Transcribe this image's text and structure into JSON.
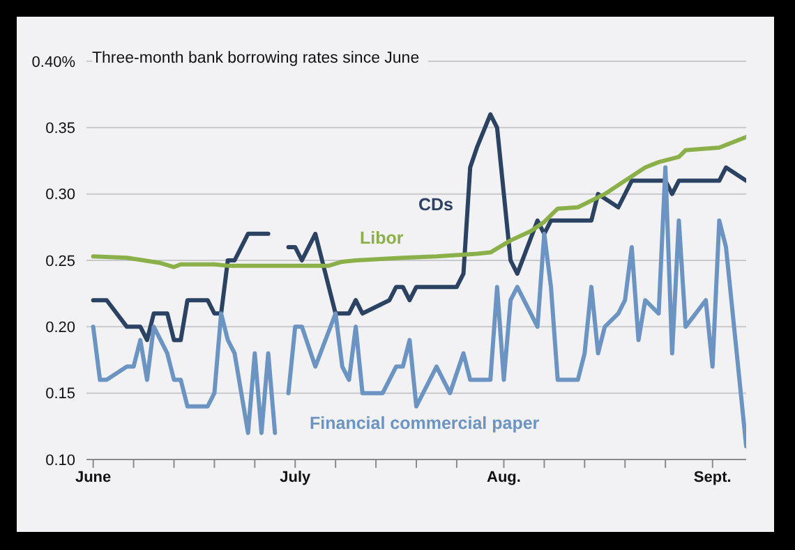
{
  "chart_data": {
    "type": "line",
    "title": "Three-month bank borrowing rates since June",
    "xlim": [
      "--05-31",
      "--09-06"
    ],
    "xticks": [
      {
        "value": "--06-01",
        "label": "June"
      },
      {
        "value": "--06-07",
        "label": null
      },
      {
        "value": "--06-13",
        "label": null
      },
      {
        "value": "--06-19",
        "label": null
      },
      {
        "value": "--06-25",
        "label": null
      },
      {
        "value": "--07-01",
        "label": "July"
      },
      {
        "value": "--07-07",
        "label": null
      },
      {
        "value": "--07-13",
        "label": null
      },
      {
        "value": "--07-19",
        "label": null
      },
      {
        "value": "--07-25",
        "label": null
      },
      {
        "value": "--08-01",
        "label": "Aug."
      },
      {
        "value": "--08-07",
        "label": null
      },
      {
        "value": "--08-13",
        "label": null
      },
      {
        "value": "--08-19",
        "label": null
      },
      {
        "value": "--08-25",
        "label": null
      },
      {
        "value": "--09-01",
        "label": "Sept."
      }
    ],
    "ylim": [
      0.1,
      0.4
    ],
    "yticks": [
      {
        "value": 0.1,
        "label": "0.10"
      },
      {
        "value": 0.15,
        "label": "0.15"
      },
      {
        "value": 0.2,
        "label": "0.20"
      },
      {
        "value": 0.25,
        "label": "0.25"
      },
      {
        "value": 0.3,
        "label": "0.30"
      },
      {
        "value": 0.35,
        "label": "0.35"
      },
      {
        "value": 0.4,
        "label": "0.40%"
      }
    ],
    "grid": "y",
    "legend": false,
    "marker": "none",
    "line_style": "solid",
    "series": [
      {
        "name": "CDs",
        "color": "#2b4262",
        "x": [
          "--06-01",
          "--06-03",
          "--06-06",
          "--06-08",
          "--06-09",
          "--06-10",
          "--06-12",
          "--06-13",
          "--06-14",
          "--06-15",
          "--06-18",
          "--06-19",
          "--06-20",
          "--06-21",
          "--06-22",
          "--06-24",
          "--06-27",
          "--06-29",
          "--06-30",
          "--07-01",
          "--07-02",
          "--07-04",
          "--07-07",
          "--07-09",
          "--07-10",
          "--07-11",
          "--07-15",
          "--07-16",
          "--07-17",
          "--07-18",
          "--07-19",
          "--07-25",
          "--07-26",
          "--07-27",
          "--07-28",
          "--07-30",
          "--07-31",
          "--08-02",
          "--08-03",
          "--08-06",
          "--08-07",
          "--08-08",
          "--08-14",
          "--08-15",
          "--08-18",
          "--08-20",
          "--08-25",
          "--08-26",
          "--08-27",
          "--09-02",
          "--09-03",
          "--09-06"
        ],
        "values": [
          0.22,
          0.22,
          0.2,
          0.2,
          0.19,
          0.21,
          0.21,
          0.19,
          0.19,
          0.22,
          0.22,
          0.21,
          0.21,
          0.25,
          0.25,
          0.27,
          0.27,
          null,
          0.26,
          0.26,
          0.25,
          0.27,
          0.21,
          0.21,
          0.22,
          0.21,
          0.22,
          0.23,
          0.23,
          0.22,
          0.23,
          0.23,
          0.24,
          0.32,
          0.335,
          0.36,
          0.35,
          0.25,
          0.24,
          0.28,
          0.27,
          0.28,
          0.28,
          0.3,
          0.29,
          0.31,
          0.31,
          0.3,
          0.31,
          0.31,
          0.32,
          0.31
        ]
      },
      {
        "name": "Libor",
        "color": "#8bb04a",
        "x": [
          "--06-01",
          "--06-06",
          "--06-11",
          "--06-13",
          "--06-14",
          "--06-19",
          "--06-21",
          "--07-06",
          "--07-08",
          "--07-10",
          "--07-17",
          "--07-22",
          "--07-28",
          "--07-30",
          "--08-02",
          "--08-05",
          "--08-07",
          "--08-09",
          "--08-12",
          "--08-16",
          "--08-19",
          "--08-22",
          "--08-24",
          "--08-27",
          "--08-28",
          "--09-02",
          "--09-06"
        ],
        "values": [
          0.253,
          0.252,
          0.248,
          0.245,
          0.247,
          0.247,
          0.246,
          0.246,
          0.249,
          0.25,
          0.252,
          0.253,
          0.255,
          0.256,
          0.265,
          0.272,
          0.279,
          0.289,
          0.29,
          0.3,
          0.31,
          0.32,
          0.324,
          0.328,
          0.333,
          0.335,
          0.343
        ]
      },
      {
        "name": "Financial commercial paper",
        "color": "#6b94c2",
        "x": [
          "--06-01",
          "--06-02",
          "--06-03",
          "--06-06",
          "--06-07",
          "--06-08",
          "--06-09",
          "--06-10",
          "--06-12",
          "--06-13",
          "--06-14",
          "--06-15",
          "--06-18",
          "--06-19",
          "--06-20",
          "--06-21",
          "--06-22",
          "--06-24",
          "--06-25",
          "--06-26",
          "--06-27",
          "--06-28",
          "--06-29",
          "--06-30",
          "--07-01",
          "--07-02",
          "--07-04",
          "--07-07",
          "--07-08",
          "--07-09",
          "--07-10",
          "--07-11",
          "--07-14",
          "--07-16",
          "--07-17",
          "--07-18",
          "--07-19",
          "--07-22",
          "--07-24",
          "--07-26",
          "--07-27",
          "--07-30",
          "--07-31",
          "--08-01",
          "--08-02",
          "--08-03",
          "--08-06",
          "--08-07",
          "--08-08",
          "--08-09",
          "--08-12",
          "--08-13",
          "--08-14",
          "--08-15",
          "--08-16",
          "--08-18",
          "--08-19",
          "--08-20",
          "--08-21",
          "--08-22",
          "--08-24",
          "--08-25",
          "--08-26",
          "--08-27",
          "--08-28",
          "--08-31",
          "--09-01",
          "--09-02",
          "--09-03",
          "--09-06"
        ],
        "values": [
          0.2,
          0.16,
          0.16,
          0.17,
          0.17,
          0.19,
          0.16,
          0.2,
          0.18,
          0.16,
          0.16,
          0.14,
          0.14,
          0.15,
          0.21,
          0.19,
          0.18,
          0.12,
          0.18,
          0.12,
          0.18,
          0.12,
          null,
          0.15,
          0.2,
          0.2,
          0.17,
          0.21,
          0.17,
          0.16,
          0.2,
          0.15,
          0.15,
          0.17,
          0.17,
          0.19,
          0.14,
          0.17,
          0.15,
          0.18,
          0.16,
          0.16,
          0.23,
          0.16,
          0.22,
          0.23,
          0.2,
          0.27,
          0.23,
          0.16,
          0.16,
          0.18,
          0.23,
          0.18,
          0.2,
          0.21,
          0.22,
          0.26,
          0.19,
          0.22,
          0.21,
          0.32,
          0.18,
          0.28,
          0.2,
          0.22,
          0.17,
          0.28,
          0.26,
          0.11
        ]
      }
    ]
  }
}
